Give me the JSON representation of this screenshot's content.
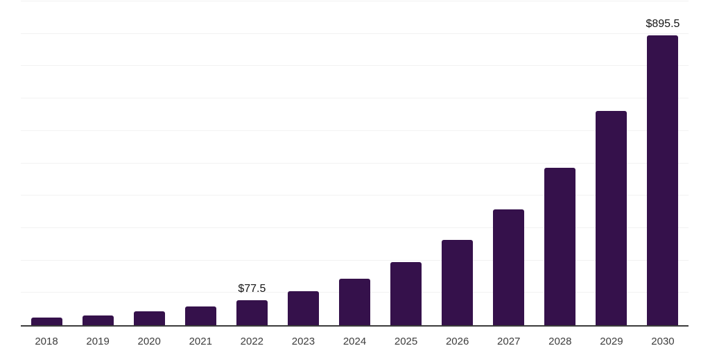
{
  "chart_data": {
    "type": "bar",
    "title": "",
    "xlabel": "",
    "ylabel": "",
    "categories": [
      "2018",
      "2019",
      "2020",
      "2021",
      "2022",
      "2023",
      "2024",
      "2025",
      "2026",
      "2027",
      "2028",
      "2029",
      "2030"
    ],
    "values": [
      22.8,
      30.9,
      42.0,
      57.1,
      77.5,
      105.3,
      143.0,
      194.2,
      263.8,
      358.3,
      486.6,
      660.9,
      895.5
    ],
    "labeled_points": [
      {
        "category": "2022",
        "label": "$77.5"
      },
      {
        "category": "2030",
        "label": "$895.5"
      }
    ],
    "ylim": [
      0,
      1000
    ],
    "gridline_step": 100,
    "grid": "horizontal",
    "y_tick_labels_shown": false,
    "legend": "none",
    "colors": {
      "bar": "#35114B",
      "axis_line": "#3B3B3B",
      "gridline": "#F2F2F2",
      "tick_label": "#3D3D3D",
      "value_label": "#141414",
      "background": "#FFFFFF"
    }
  }
}
